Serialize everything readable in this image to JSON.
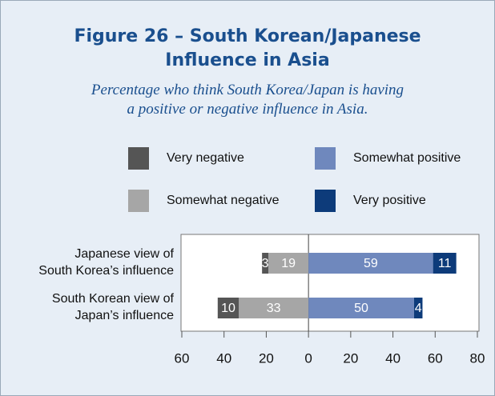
{
  "chart_data": {
    "type": "diverging-bar",
    "title": "Figure 26 – South Korean/Japanese\nInfluence in Asia",
    "subtitle": "Percentage who think South Korea/Japan is having\na positive or negative influence in Asia.",
    "categories": [
      "Japanese view of\nSouth Korea’s influence",
      "South Korean view of\nJapan’s influence"
    ],
    "series": [
      {
        "name": "Very negative",
        "color": "#555555",
        "values": [
          -3,
          -10
        ],
        "value_labels": [
          "3",
          "10"
        ]
      },
      {
        "name": "Somewhat negative",
        "color": "#a6a6a6",
        "values": [
          -19,
          -33
        ],
        "value_labels": [
          "19",
          "33"
        ]
      },
      {
        "name": "Somewhat positive",
        "color": "#6f88bd",
        "values": [
          59,
          50
        ]
      },
      {
        "name": "Very positive",
        "color": "#0d3b7a",
        "values": [
          11,
          4
        ]
      }
    ],
    "xlim": [
      -60,
      80
    ],
    "xticks": [
      {
        "value": -60,
        "label": "60"
      },
      {
        "value": -40,
        "label": "40"
      },
      {
        "value": -20,
        "label": "20"
      },
      0,
      20,
      40,
      60,
      80
    ]
  }
}
